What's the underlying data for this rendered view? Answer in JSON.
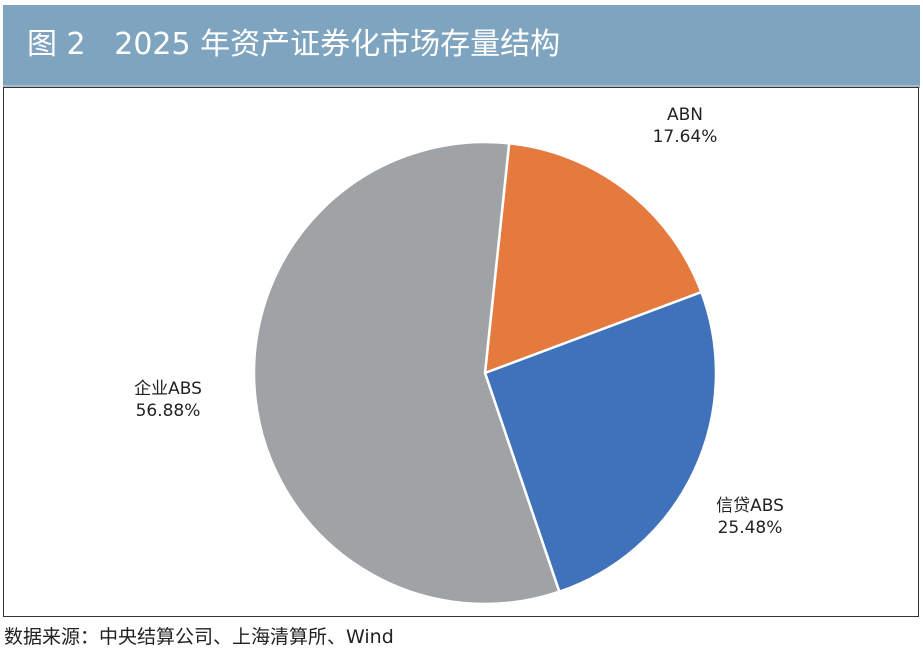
{
  "title": "图 2   2025 年资产证券化市场存量结构",
  "source": "数据来源：中央结算公司、上海清算所、Wind",
  "chart_data": {
    "type": "pie",
    "title": "2025 年资产证券化市场存量结构",
    "start_angle_deg": 6,
    "slices": [
      {
        "label": "ABN",
        "value": 17.64,
        "value_label": "17.64%",
        "color": "#E57A3F"
      },
      {
        "label": "信贷ABS",
        "value": 25.48,
        "value_label": "25.48%",
        "color": "#3F72BA"
      },
      {
        "label": "企业ABS",
        "value": 56.88,
        "value_label": "56.88%",
        "color": "#A0A3A6"
      }
    ]
  }
}
